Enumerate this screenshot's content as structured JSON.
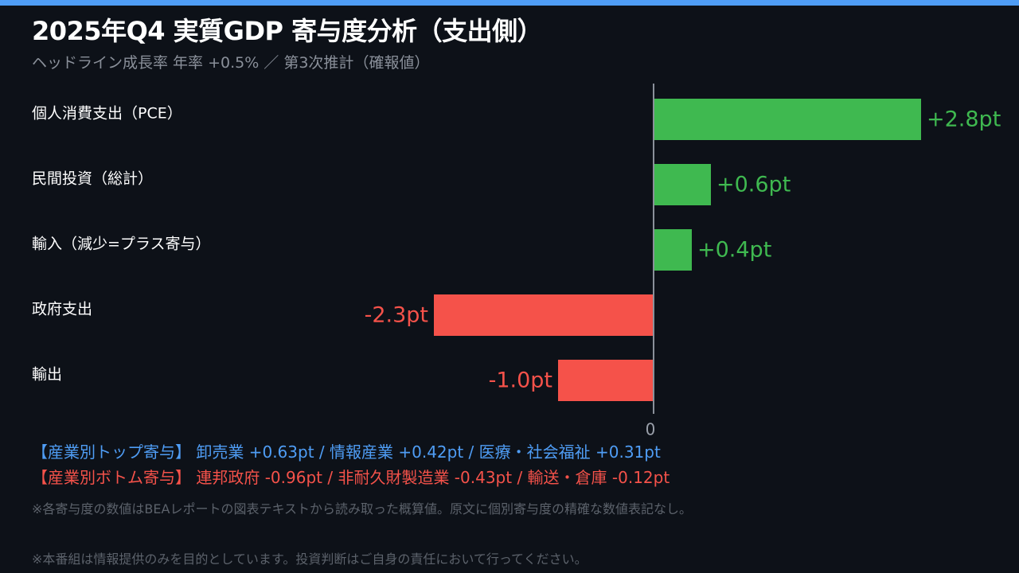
{
  "header": {
    "title": "2025年Q4 実質GDP 寄与度分析（支出側）",
    "subtitle": "ヘッドライン成長率 年率 +0.5%  ／  第3次推計（確報値）"
  },
  "colors": {
    "accent_bar": "#4f9df5",
    "positive": "#3fb950",
    "negative": "#f5524a",
    "axis": "#8a909a"
  },
  "chart_data": {
    "type": "bar",
    "orientation": "horizontal",
    "title": "2025年Q4 実質GDP 寄与度分析（支出側）",
    "categories": [
      "個人消費支出（PCE）",
      "民間投資（総計）",
      "輸入（減少=プラス寄与）",
      "政府支出",
      "輸出"
    ],
    "values": [
      2.8,
      0.6,
      0.4,
      -2.3,
      -1.0
    ],
    "value_labels": [
      "+2.8pt",
      "+0.6pt",
      "+0.4pt",
      "-2.3pt",
      "-1.0pt"
    ],
    "unit": "pt",
    "xlim": [
      -2.3,
      2.8
    ],
    "ticks": [
      {
        "value": 0,
        "label": "0"
      }
    ],
    "grid": false,
    "legend": "none"
  },
  "notes": {
    "top_contributors": "【産業別トップ寄与】 卸売業 +0.63pt  /  情報産業 +0.42pt  /  医療・社会福祉 +0.31pt",
    "bottom_contributors": "【産業別ボトム寄与】 連邦政府 -0.96pt  /  非耐久財製造業 -0.43pt  /  輸送・倉庫 -0.12pt",
    "footnote": "※各寄与度の数値はBEAレポートの図表テキストから読み取った概算値。原文に個別寄与度の精確な数値表記なし。",
    "disclaimer": "※本番組は情報提供のみを目的としています。投資判断はご自身の責任において行ってください。"
  }
}
